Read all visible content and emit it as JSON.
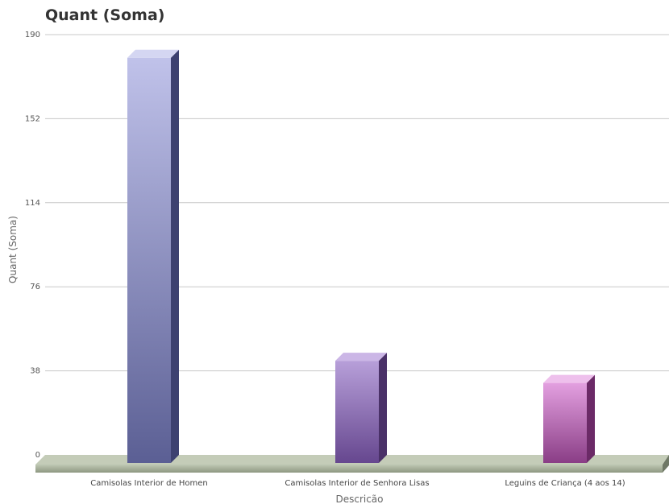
{
  "chart_data": {
    "type": "bar",
    "title": "Quant (Soma)",
    "xlabel": "Descricão",
    "ylabel": "Quant (Soma)",
    "ylim": [
      0,
      190
    ],
    "yticks": [
      0,
      38,
      76,
      114,
      152,
      190
    ],
    "grid": true,
    "categories": [
      "Camisolas Interior de Homen",
      "Camisolas Interior de Senhora Lisas",
      "Leguins de Criança (4 aos 14)"
    ],
    "values": [
      181,
      44,
      34
    ],
    "colors": [
      "#8a8fc4",
      "#9a78bc",
      "#c067b8"
    ]
  }
}
